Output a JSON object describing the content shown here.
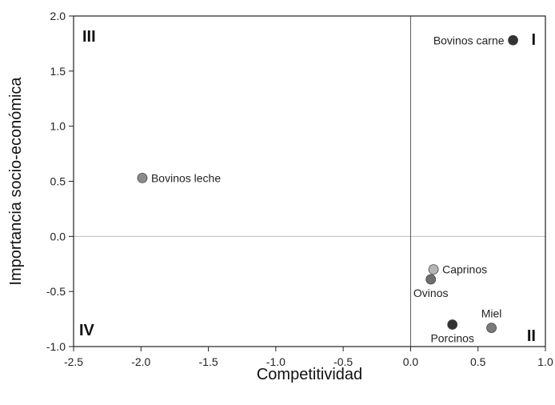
{
  "chart_data": {
    "type": "scatter",
    "xlabel": "Competitividad",
    "ylabel": "Importancia socio-económica",
    "xlim": [
      -2.5,
      1.0
    ],
    "ylim": [
      -1.0,
      2.0
    ],
    "xticks": [
      "-2.5",
      "-2.0",
      "-1.5",
      "-1.0",
      "-0.5",
      "0.0",
      "0.5",
      "1.0"
    ],
    "xtick_values": [
      -2.5,
      -2.0,
      -1.5,
      -1.0,
      -0.5,
      0.0,
      0.5,
      1.0
    ],
    "yticks": [
      "2.0",
      "1.5",
      "1.0",
      "0.5",
      "0.0",
      "-0.5",
      "-1.0"
    ],
    "ytick_values": [
      2.0,
      1.5,
      1.0,
      0.5,
      0.0,
      -0.5,
      -1.0
    ],
    "grid": false,
    "reference_lines": {
      "x": 0.0,
      "y": 0.0
    },
    "points": [
      {
        "label": "Bovinos carne",
        "x": 0.76,
        "y": 1.78,
        "color": "#333333",
        "label_side": "left"
      },
      {
        "label": "Bovinos leche",
        "x": -1.99,
        "y": 0.53,
        "color": "#8c8c8c",
        "label_side": "right"
      },
      {
        "label": "Caprinos",
        "x": 0.17,
        "y": -0.3,
        "color": "#b5b5b5",
        "label_side": "right"
      },
      {
        "label": "Ovinos",
        "x": 0.15,
        "y": -0.39,
        "color": "#6e6e6e",
        "label_side": "below"
      },
      {
        "label": "Porcinos",
        "x": 0.31,
        "y": -0.8,
        "color": "#333333",
        "label_side": "below"
      },
      {
        "label": "Miel",
        "x": 0.6,
        "y": -0.83,
        "color": "#7a7a7a",
        "label_side": "above"
      }
    ],
    "quadrant_labels": [
      {
        "text": "I",
        "corner": "top-right"
      },
      {
        "text": "II",
        "corner": "bottom-right"
      },
      {
        "text": "III",
        "corner": "top-left"
      },
      {
        "text": "IV",
        "corner": "bottom-left"
      }
    ]
  }
}
